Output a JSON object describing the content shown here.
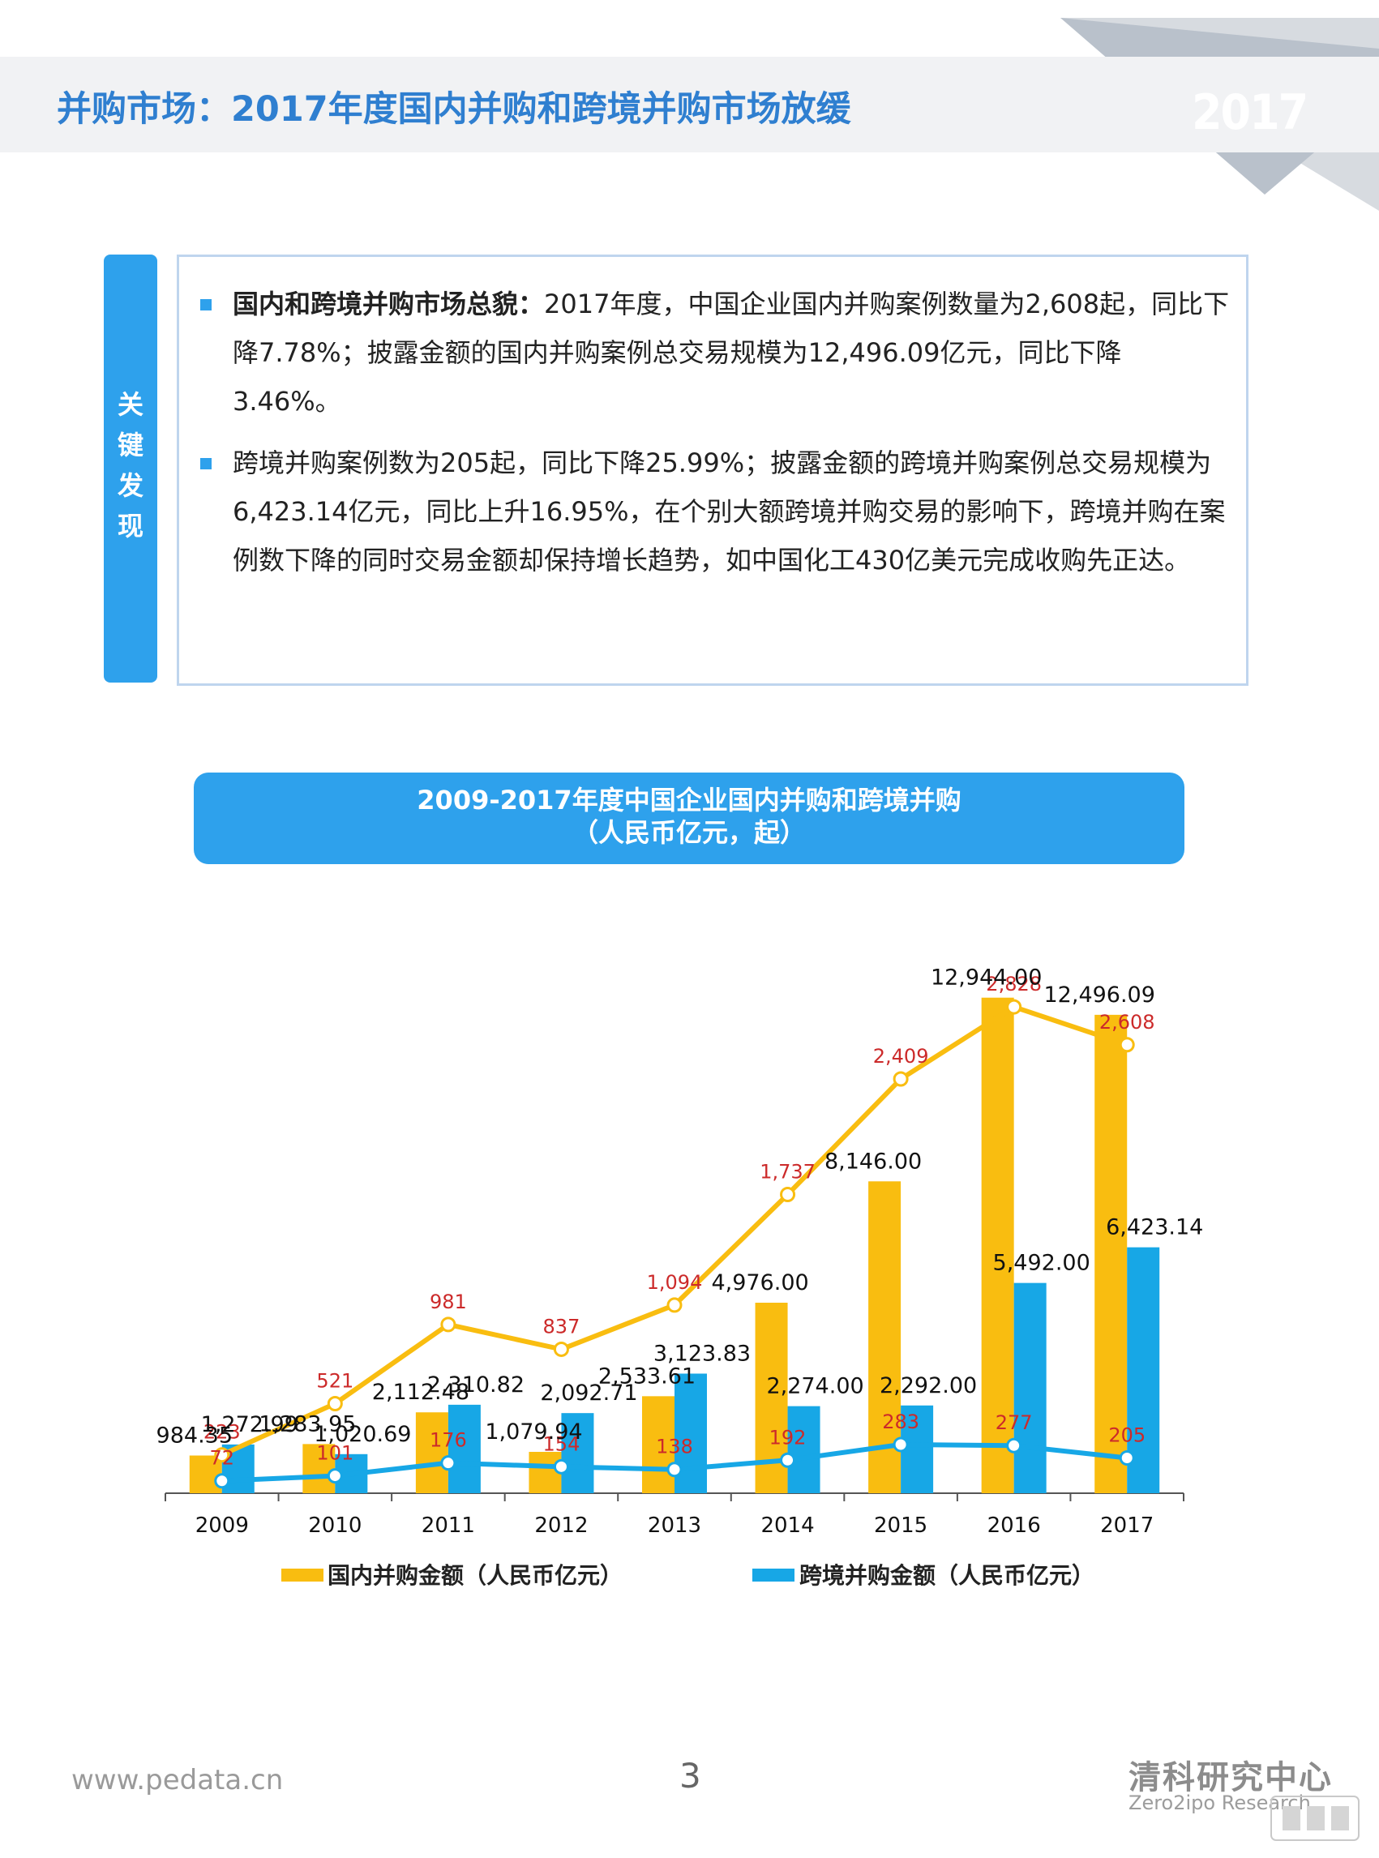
{
  "header": {
    "title": "并购市场：2017年度国内并购和跨境并购市场放缓",
    "year_badge": "2017"
  },
  "key_findings": {
    "tab_label": [
      "关",
      "键",
      "发",
      "现"
    ],
    "items": [
      {
        "bold": "国内和跨境并购市场总貌：",
        "text": "2017年度，中国企业国内并购案例数量为2,608起，同比下降7.78%；披露金额的国内并购案例总交易规模为12,496.09亿元，同比下降3.46%。"
      },
      {
        "bold": "",
        "text": "跨境并购案例数为205起，同比下降25.99%；披露金额的跨境并购案例总交易规模为6,423.14亿元，同比上升16.95%，在个别大额跨境并购交易的影响下，跨境并购在案例数下降的同时交易金额却保持增长趋势，如中国化工430亿美元完成收购先正达。"
      }
    ]
  },
  "chart_header": {
    "line1": "2009-2017年度中国企业国内并购和跨境并购",
    "line2": "（人民币亿元，起）"
  },
  "chart_data": {
    "type": "bar",
    "categories": [
      "2009",
      "2010",
      "2011",
      "2012",
      "2013",
      "2014",
      "2015",
      "2016",
      "2017"
    ],
    "series": [
      {
        "name": "国内并购金额（人民币亿元）",
        "kind": "bar",
        "color": "#f9bd10",
        "values": [
          984.35,
          1283.95,
          2112.48,
          1079.94,
          2533.61,
          4976.0,
          8146.0,
          12944.0,
          12496.09
        ],
        "labels": [
          "984.35",
          "1,283.95",
          "2,112.48",
          "1,079.94",
          "2,533.61",
          "4,976.00",
          "8,146.00",
          "12,944.00",
          "12,496.09"
        ]
      },
      {
        "name": "跨境并购金额（人民币亿元）",
        "kind": "bar",
        "color": "#17a7e6",
        "values": [
          1272.99,
          1020.69,
          2310.82,
          2092.71,
          3123.83,
          2274.0,
          2292.0,
          5492.0,
          6423.14
        ],
        "labels": [
          "1,272.99",
          "1,020.69",
          "2,310.82",
          "2,092.71",
          "3,123.83",
          "2,274.00",
          "2,292.00",
          "5,492.00",
          "6,423.14"
        ]
      },
      {
        "kind": "line",
        "color": "#f9bd10",
        "values": [
          223,
          521,
          981,
          837,
          1094,
          1737,
          2409,
          2828,
          2608
        ],
        "labels": [
          "223",
          "521",
          "981",
          "837",
          "1,094",
          "1,737",
          "2,409",
          "2,828",
          "2,608"
        ]
      },
      {
        "kind": "line",
        "color": "#17a7e6",
        "values": [
          72,
          101,
          176,
          154,
          138,
          192,
          283,
          277,
          205
        ],
        "labels": [
          "72",
          "101",
          "176",
          "154",
          "138",
          "192",
          "283",
          "277",
          "205"
        ]
      }
    ],
    "amount_ylim": [
      0,
      13700
    ],
    "count_ylim": [
      0,
      3050
    ],
    "grid": false,
    "legend": "bottom"
  },
  "footer": {
    "url": "www.pedata.cn",
    "page_number": "3",
    "logo_cn": "清科研究中心",
    "logo_en": "Zero2ipo Research"
  }
}
